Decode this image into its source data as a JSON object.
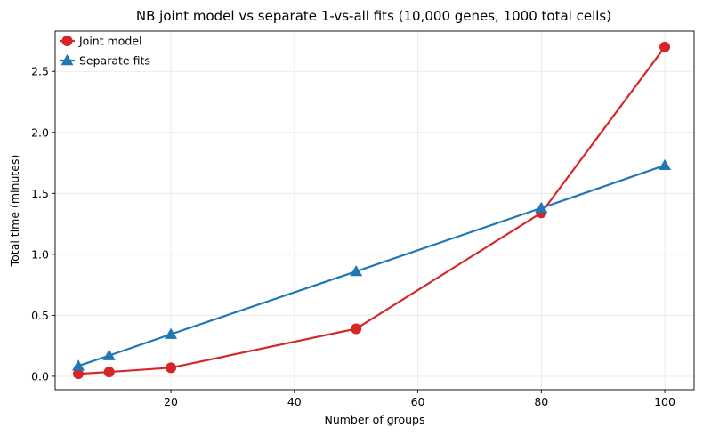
{
  "chart_data": {
    "type": "line",
    "title": "NB joint model vs separate 1-vs-all fits (10,000 genes, 1000 total cells)",
    "xlabel": "Number of groups",
    "ylabel": "Total time (minutes)",
    "xlim": [
      1.25,
      104.75
    ],
    "ylim": [
      -0.11,
      2.83
    ],
    "xticks": [
      20,
      40,
      60,
      80,
      100
    ],
    "yticks": [
      0.0,
      0.5,
      1.0,
      1.5,
      2.0,
      2.5
    ],
    "grid": true,
    "legend": "top-left",
    "series": [
      {
        "name": "Joint model",
        "marker": "circle",
        "color": "#d62728",
        "x": [
          5,
          10,
          20,
          50,
          80,
          100
        ],
        "y": [
          0.02,
          0.035,
          0.07,
          0.39,
          1.34,
          2.7
        ]
      },
      {
        "name": "Separate fits",
        "marker": "triangle",
        "color": "#1f77b4",
        "x": [
          5,
          10,
          20,
          50,
          80,
          100
        ],
        "y": [
          0.085,
          0.17,
          0.345,
          0.86,
          1.38,
          1.73
        ]
      }
    ]
  }
}
